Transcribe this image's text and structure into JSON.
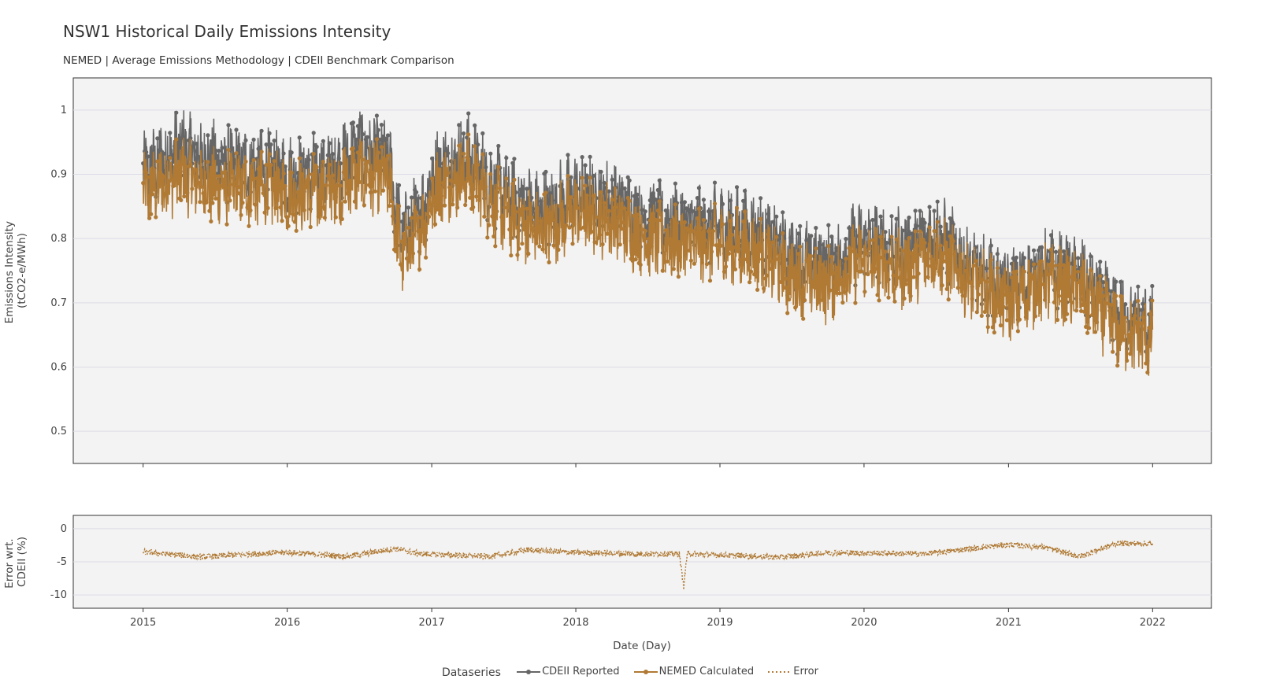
{
  "title": "NSW1 Historical Daily Emissions Intensity",
  "subtitle": "NEMED | Average Emissions Methodology | CDEII Benchmark Comparison",
  "colors": {
    "cdeii": "#666666",
    "nemed": "#b07a35",
    "error": "#b07a35",
    "panel": "#f3f3f3",
    "grid": "#dcdce6"
  },
  "chart_data": [
    {
      "type": "line",
      "panel": "top",
      "ylabel_line1": "Emissions Intensity",
      "ylabel_line2": "(tCO2-e/MWh)",
      "ylim": [
        0.45,
        1.05
      ],
      "yticks": [
        1,
        0.9,
        0.8,
        0.7,
        0.6,
        0.5
      ],
      "xlim": [
        "2014-07-08",
        "2022-05-30"
      ],
      "series": [
        {
          "name": "CDEII Reported",
          "style": "line+markers",
          "color": "#666666",
          "approx_daily_trend": [
            [
              "2015-01-01",
              0.9
            ],
            [
              "2015-04-01",
              0.94
            ],
            [
              "2015-07-01",
              0.92
            ],
            [
              "2015-10-01",
              0.91
            ],
            [
              "2016-01-01",
              0.9
            ],
            [
              "2016-04-01",
              0.9
            ],
            [
              "2016-07-01",
              0.94
            ],
            [
              "2016-09-15",
              0.92
            ],
            [
              "2016-10-15",
              0.8
            ],
            [
              "2016-12-01",
              0.84
            ],
            [
              "2017-01-15",
              0.91
            ],
            [
              "2017-04-01",
              0.93
            ],
            [
              "2017-07-01",
              0.87
            ],
            [
              "2017-10-01",
              0.84
            ],
            [
              "2018-01-01",
              0.87
            ],
            [
              "2018-04-01",
              0.86
            ],
            [
              "2018-07-01",
              0.83
            ],
            [
              "2018-10-01",
              0.82
            ],
            [
              "2019-01-01",
              0.82
            ],
            [
              "2019-04-01",
              0.81
            ],
            [
              "2019-07-01",
              0.77
            ],
            [
              "2019-10-01",
              0.76
            ],
            [
              "2020-01-01",
              0.8
            ],
            [
              "2020-04-01",
              0.78
            ],
            [
              "2020-07-01",
              0.81
            ],
            [
              "2020-10-01",
              0.75
            ],
            [
              "2021-01-01",
              0.72
            ],
            [
              "2021-04-01",
              0.75
            ],
            [
              "2021-07-01",
              0.74
            ],
            [
              "2021-10-01",
              0.68
            ],
            [
              "2022-01-01",
              0.66
            ]
          ]
        },
        {
          "name": "NEMED Calculated",
          "style": "line+markers",
          "color": "#b07a35",
          "approx_daily_trend": [
            [
              "2015-01-01",
              0.87
            ],
            [
              "2015-04-01",
              0.9
            ],
            [
              "2015-07-01",
              0.88
            ],
            [
              "2015-10-01",
              0.88
            ],
            [
              "2016-01-01",
              0.87
            ],
            [
              "2016-04-01",
              0.87
            ],
            [
              "2016-07-01",
              0.9
            ],
            [
              "2016-09-15",
              0.89
            ],
            [
              "2016-10-15",
              0.77
            ],
            [
              "2016-12-01",
              0.81
            ],
            [
              "2017-01-15",
              0.88
            ],
            [
              "2017-04-01",
              0.9
            ],
            [
              "2017-07-01",
              0.84
            ],
            [
              "2017-10-01",
              0.81
            ],
            [
              "2018-01-01",
              0.84
            ],
            [
              "2018-04-01",
              0.83
            ],
            [
              "2018-07-01",
              0.8
            ],
            [
              "2018-10-01",
              0.79
            ],
            [
              "2019-01-01",
              0.79
            ],
            [
              "2019-04-01",
              0.78
            ],
            [
              "2019-07-01",
              0.74
            ],
            [
              "2019-10-01",
              0.73
            ],
            [
              "2020-01-01",
              0.77
            ],
            [
              "2020-04-01",
              0.75
            ],
            [
              "2020-07-01",
              0.78
            ],
            [
              "2020-10-01",
              0.73
            ],
            [
              "2021-01-01",
              0.7
            ],
            [
              "2021-04-01",
              0.73
            ],
            [
              "2021-07-01",
              0.72
            ],
            [
              "2021-10-01",
              0.66
            ],
            [
              "2022-01-01",
              0.64
            ]
          ]
        }
      ]
    },
    {
      "type": "line",
      "panel": "bottom",
      "ylabel_line1": "Error wrt.",
      "ylabel_line2": "CDEII (%)",
      "ylim": [
        -12,
        2
      ],
      "yticks": [
        0,
        -5,
        -10
      ],
      "xlabel": "Date (Day)",
      "xticks": [
        "2015",
        "2016",
        "2017",
        "2018",
        "2019",
        "2020",
        "2021",
        "2022"
      ],
      "series": [
        {
          "name": "Error",
          "style": "dotted",
          "color": "#b07a35",
          "approx_daily_trend": [
            [
              "2015-01-01",
              -3.5
            ],
            [
              "2015-06-01",
              -4.3
            ],
            [
              "2015-10-01",
              -3.8
            ],
            [
              "2016-01-01",
              -3.6
            ],
            [
              "2016-06-01",
              -4.2
            ],
            [
              "2016-10-01",
              -3.0
            ],
            [
              "2016-12-01",
              -3.8
            ],
            [
              "2017-06-01",
              -4.2
            ],
            [
              "2017-09-01",
              -3.2
            ],
            [
              "2018-01-01",
              -3.6
            ],
            [
              "2018-06-01",
              -3.8
            ],
            [
              "2018-09-20",
              -3.8
            ],
            [
              "2018-10-01",
              -8.8
            ],
            [
              "2018-10-10",
              -3.8
            ],
            [
              "2019-06-01",
              -4.3
            ],
            [
              "2019-10-01",
              -3.6
            ],
            [
              "2020-06-01",
              -3.8
            ],
            [
              "2020-10-01",
              -3.0
            ],
            [
              "2021-01-01",
              -2.4
            ],
            [
              "2021-04-01",
              -2.8
            ],
            [
              "2021-07-01",
              -4.2
            ],
            [
              "2021-10-01",
              -2.2
            ],
            [
              "2022-01-01",
              -2.3
            ]
          ]
        }
      ]
    }
  ],
  "legend": {
    "title": "Dataseries",
    "items": [
      "CDEII Reported",
      "NEMED Calculated",
      "Error"
    ]
  }
}
